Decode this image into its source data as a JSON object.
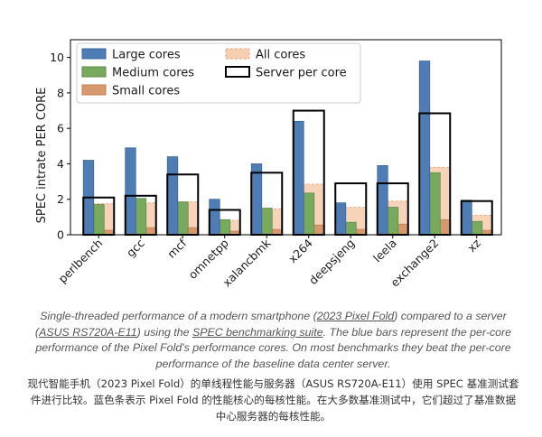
{
  "chart_data": {
    "type": "bar",
    "ylabel": "SPEC intrate PER CORE",
    "ylim": [
      0,
      11
    ],
    "yticks": [
      0,
      2,
      4,
      6,
      8,
      10
    ],
    "grid": false,
    "legend_placement": "top-left",
    "categories": [
      "perlbench",
      "gcc",
      "mcf",
      "omnetpp",
      "xalancbmk",
      "x264",
      "deepsjeng",
      "leela",
      "exchange2",
      "xz"
    ],
    "series": [
      {
        "name": "Large cores",
        "color": "#4f7db3",
        "values": [
          4.2,
          4.9,
          4.4,
          2.0,
          4.0,
          6.4,
          1.8,
          3.9,
          9.8,
          1.95
        ]
      },
      {
        "name": "Medium cores",
        "color": "#79a95e",
        "values": [
          1.7,
          2.05,
          1.85,
          0.85,
          1.5,
          2.35,
          0.7,
          1.55,
          3.5,
          0.75
        ]
      },
      {
        "name": "Small cores",
        "color": "#d6996e",
        "values": [
          0.25,
          0.4,
          0.4,
          0.2,
          0.3,
          0.55,
          0.3,
          0.6,
          0.85,
          0.25
        ]
      },
      {
        "name": "All cores",
        "color": "#f6cfb2",
        "values": [
          1.75,
          1.8,
          1.85,
          0.8,
          1.45,
          2.85,
          1.55,
          1.9,
          3.8,
          1.1
        ]
      },
      {
        "name": "Server per core",
        "color": "#000000",
        "values": [
          2.1,
          2.2,
          3.4,
          1.4,
          3.5,
          7.0,
          2.9,
          2.9,
          6.85,
          1.9
        ]
      }
    ]
  },
  "caption": {
    "en_part1": "Single-threaded performance of a modern smartphone (",
    "en_link1": "2023 Pixel Fold",
    "en_part2": ") compared to a server (",
    "en_link2": "ASUS RS720A-E11",
    "en_part3": ") using the ",
    "en_link3": "SPEC benchmarking suite",
    "en_part4": ". The blue bars represent the per-core performance of the Pixel Fold's performance cores. On most benchmarks they beat the per-core performance of the baseline data center server.",
    "zh": "现代智能手机（2023 Pixel Fold）的单线程性能与服务器（ASUS RS720A-E11）使用 SPEC 基准测试套件进行比较。蓝色条表示 Pixel Fold 的性能核心的每核性能。在大多数基准测试中，它们超过了基准数据中心服务器的每核性能。"
  }
}
